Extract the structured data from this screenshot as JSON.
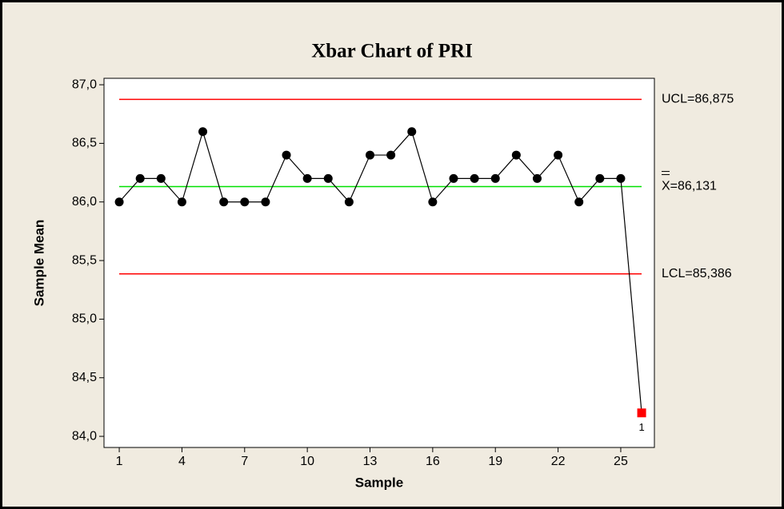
{
  "chart_data": {
    "type": "line",
    "title": "Xbar Chart of PRI",
    "x_label": "Sample",
    "y_label": "Sample Mean",
    "x": [
      1,
      2,
      3,
      4,
      5,
      6,
      7,
      8,
      9,
      10,
      11,
      12,
      13,
      14,
      15,
      16,
      17,
      18,
      19,
      20,
      21,
      22,
      23,
      24,
      25,
      26
    ],
    "series": [
      {
        "name": "Sample Mean",
        "color": "#000000",
        "values": [
          86.0,
          86.2,
          86.2,
          86.0,
          86.6,
          86.0,
          86.0,
          86.0,
          86.4,
          86.2,
          86.2,
          86.0,
          86.4,
          86.4,
          86.6,
          86.0,
          86.2,
          86.2,
          86.2,
          86.4,
          86.2,
          86.4,
          86.0,
          86.2,
          86.2,
          84.2
        ]
      }
    ],
    "control_lines": [
      {
        "value": 86.875,
        "label": "UCL=86,875",
        "color": "#ff0000"
      },
      {
        "value": 86.131,
        "label": "X=86,131",
        "color": "#00e000",
        "double_bar": true
      },
      {
        "value": 85.386,
        "label": "LCL=85,386",
        "color": "#ff0000"
      }
    ],
    "annotations": [
      {
        "x": 26,
        "text": "1",
        "color": "#ff0000"
      }
    ],
    "xlim": [
      0.27,
      26.61
    ],
    "ylim": [
      83.905,
      87.055
    ],
    "xticks": [
      1,
      4,
      7,
      10,
      13,
      16,
      19,
      22,
      25
    ],
    "yticks": [
      {
        "value": 84.0,
        "label": "84,0"
      },
      {
        "value": 84.5,
        "label": "84,5"
      },
      {
        "value": 85.0,
        "label": "85,0"
      },
      {
        "value": 85.5,
        "label": "85,5"
      },
      {
        "value": 86.0,
        "label": "86,0"
      },
      {
        "value": 86.5,
        "label": "86,5"
      },
      {
        "value": 87.0,
        "label": "87,0"
      }
    ]
  }
}
